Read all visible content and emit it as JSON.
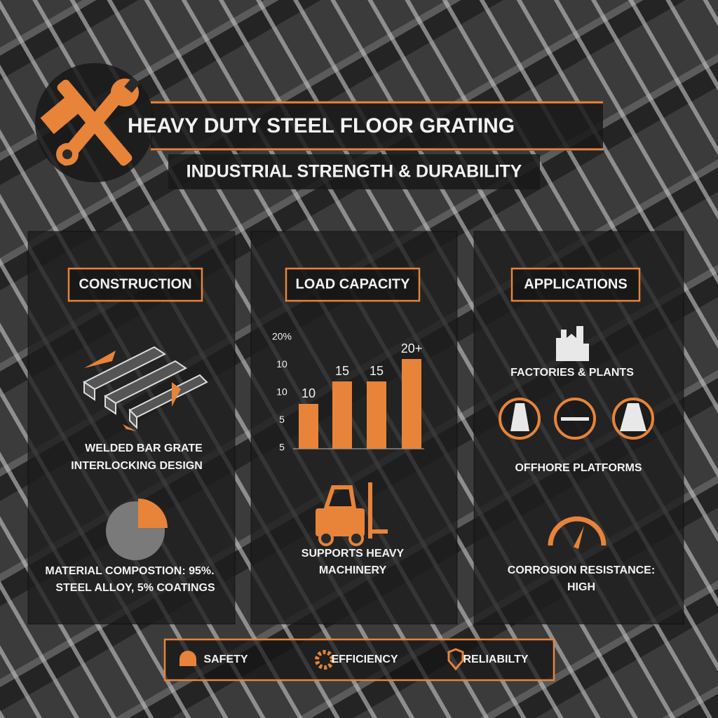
{
  "header": {
    "title": "HEAVY DUTY STEEL FLOOR GRATING",
    "subtitle": "INDUSTRIAL STRENGTH & DURABILITY"
  },
  "panels": [
    {
      "heading": "CONSTRUCTION",
      "captions": [
        "WELDED BAR GRATE",
        "INTERLOCKING DESIGN"
      ],
      "note": [
        "MATERIAL COMPOSTION: 95%.",
        "STEEL ALLOY, 5% COATINGS"
      ]
    },
    {
      "heading": "LOAD CAPACITY",
      "chart": {
        "type": "bar",
        "axis_labels": [
          "20%",
          "10",
          "10",
          "5",
          "5"
        ],
        "values": [
          10,
          15,
          15,
          20
        ],
        "value_labels": [
          "10",
          "15",
          "15",
          "20+"
        ],
        "ylim": [
          0,
          25
        ],
        "color": "#e8833a"
      },
      "caption": [
        "SUPPORTS HEAVY",
        "MACHINERY"
      ]
    },
    {
      "heading": "APPLICATIONS",
      "items": [
        "FACTORIES & PLANTS",
        "OFFHORE PLATFORMS"
      ],
      "note": [
        "CORROSION RESISTANCE:",
        "HIGH"
      ]
    }
  ],
  "footer": [
    "SAFETY",
    "EFFICIENCY",
    "RELIABILTY"
  ]
}
